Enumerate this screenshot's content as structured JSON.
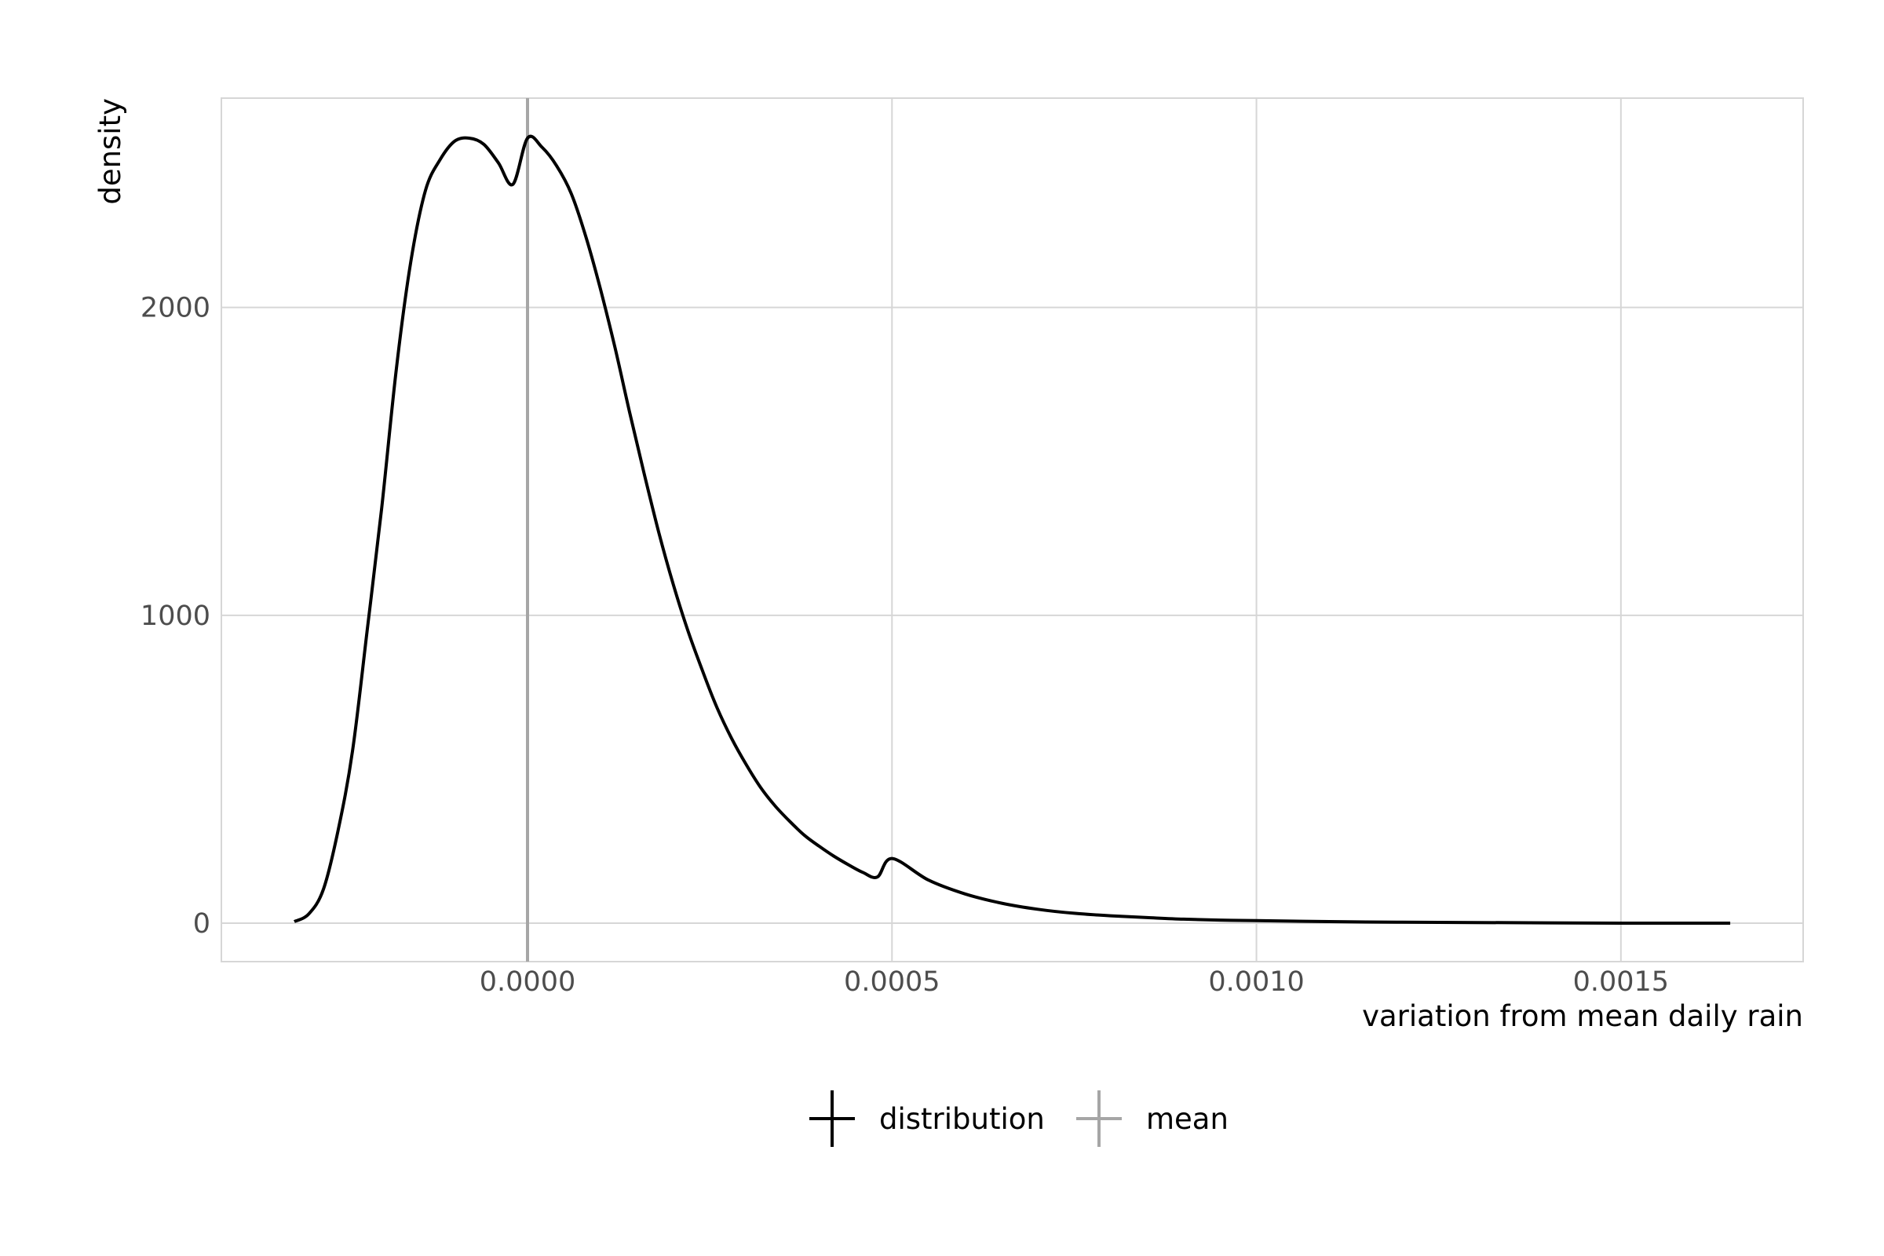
{
  "chart_data": {
    "type": "line",
    "xlabel": "variation from mean daily rain",
    "ylabel": "density",
    "xlim": [
      -0.00042,
      0.00175
    ],
    "ylim": [
      -125,
      2680
    ],
    "x_ticks": [
      {
        "value": 0.0,
        "label": "0.0000"
      },
      {
        "value": 0.0005,
        "label": "0.0005"
      },
      {
        "value": 0.001,
        "label": "0.0010"
      },
      {
        "value": 0.0015,
        "label": "0.0015"
      }
    ],
    "y_ticks": [
      {
        "value": 0,
        "label": "0"
      },
      {
        "value": 1000,
        "label": "1000"
      },
      {
        "value": 2000,
        "label": "2000"
      }
    ],
    "grid": true,
    "legend_position": "bottom",
    "series": [
      {
        "name": "distribution",
        "color": "#000000",
        "x": [
          -0.00032,
          -0.0003,
          -0.00028,
          -0.00026,
          -0.00024,
          -0.00022,
          -0.0002,
          -0.00018,
          -0.00016,
          -0.00014,
          -0.00012,
          -0.0001,
          -8e-05,
          -6e-05,
          -4e-05,
          -2e-05,
          0.0,
          2e-05,
          4e-05,
          6e-05,
          8e-05,
          0.0001,
          0.00012,
          0.00014,
          0.00016,
          0.00018,
          0.0002,
          0.00022,
          0.00024,
          0.00026,
          0.00028,
          0.0003,
          0.00032,
          0.00034,
          0.00036,
          0.00038,
          0.0004,
          0.00042,
          0.00044,
          0.00046,
          0.00048,
          0.0005,
          0.00055,
          0.0006,
          0.00065,
          0.0007,
          0.00075,
          0.0008,
          0.00085,
          0.0009,
          0.00095,
          0.001,
          0.0011,
          0.0012,
          0.0013,
          0.0014,
          0.0015,
          0.00165
        ],
        "y": [
          5,
          30,
          110,
          300,
          560,
          950,
          1350,
          1800,
          2150,
          2380,
          2480,
          2540,
          2550,
          2530,
          2470,
          2400,
          2550,
          2520,
          2460,
          2370,
          2230,
          2060,
          1870,
          1660,
          1460,
          1270,
          1100,
          950,
          820,
          700,
          600,
          515,
          440,
          380,
          330,
          285,
          250,
          218,
          190,
          165,
          150,
          210,
          140,
          95,
          65,
          45,
          32,
          24,
          18,
          13,
          10,
          8,
          5,
          3,
          2,
          1,
          0,
          0
        ]
      },
      {
        "name": "mean",
        "color": "#a6a6a6",
        "vline_x": 0.0
      }
    ]
  }
}
